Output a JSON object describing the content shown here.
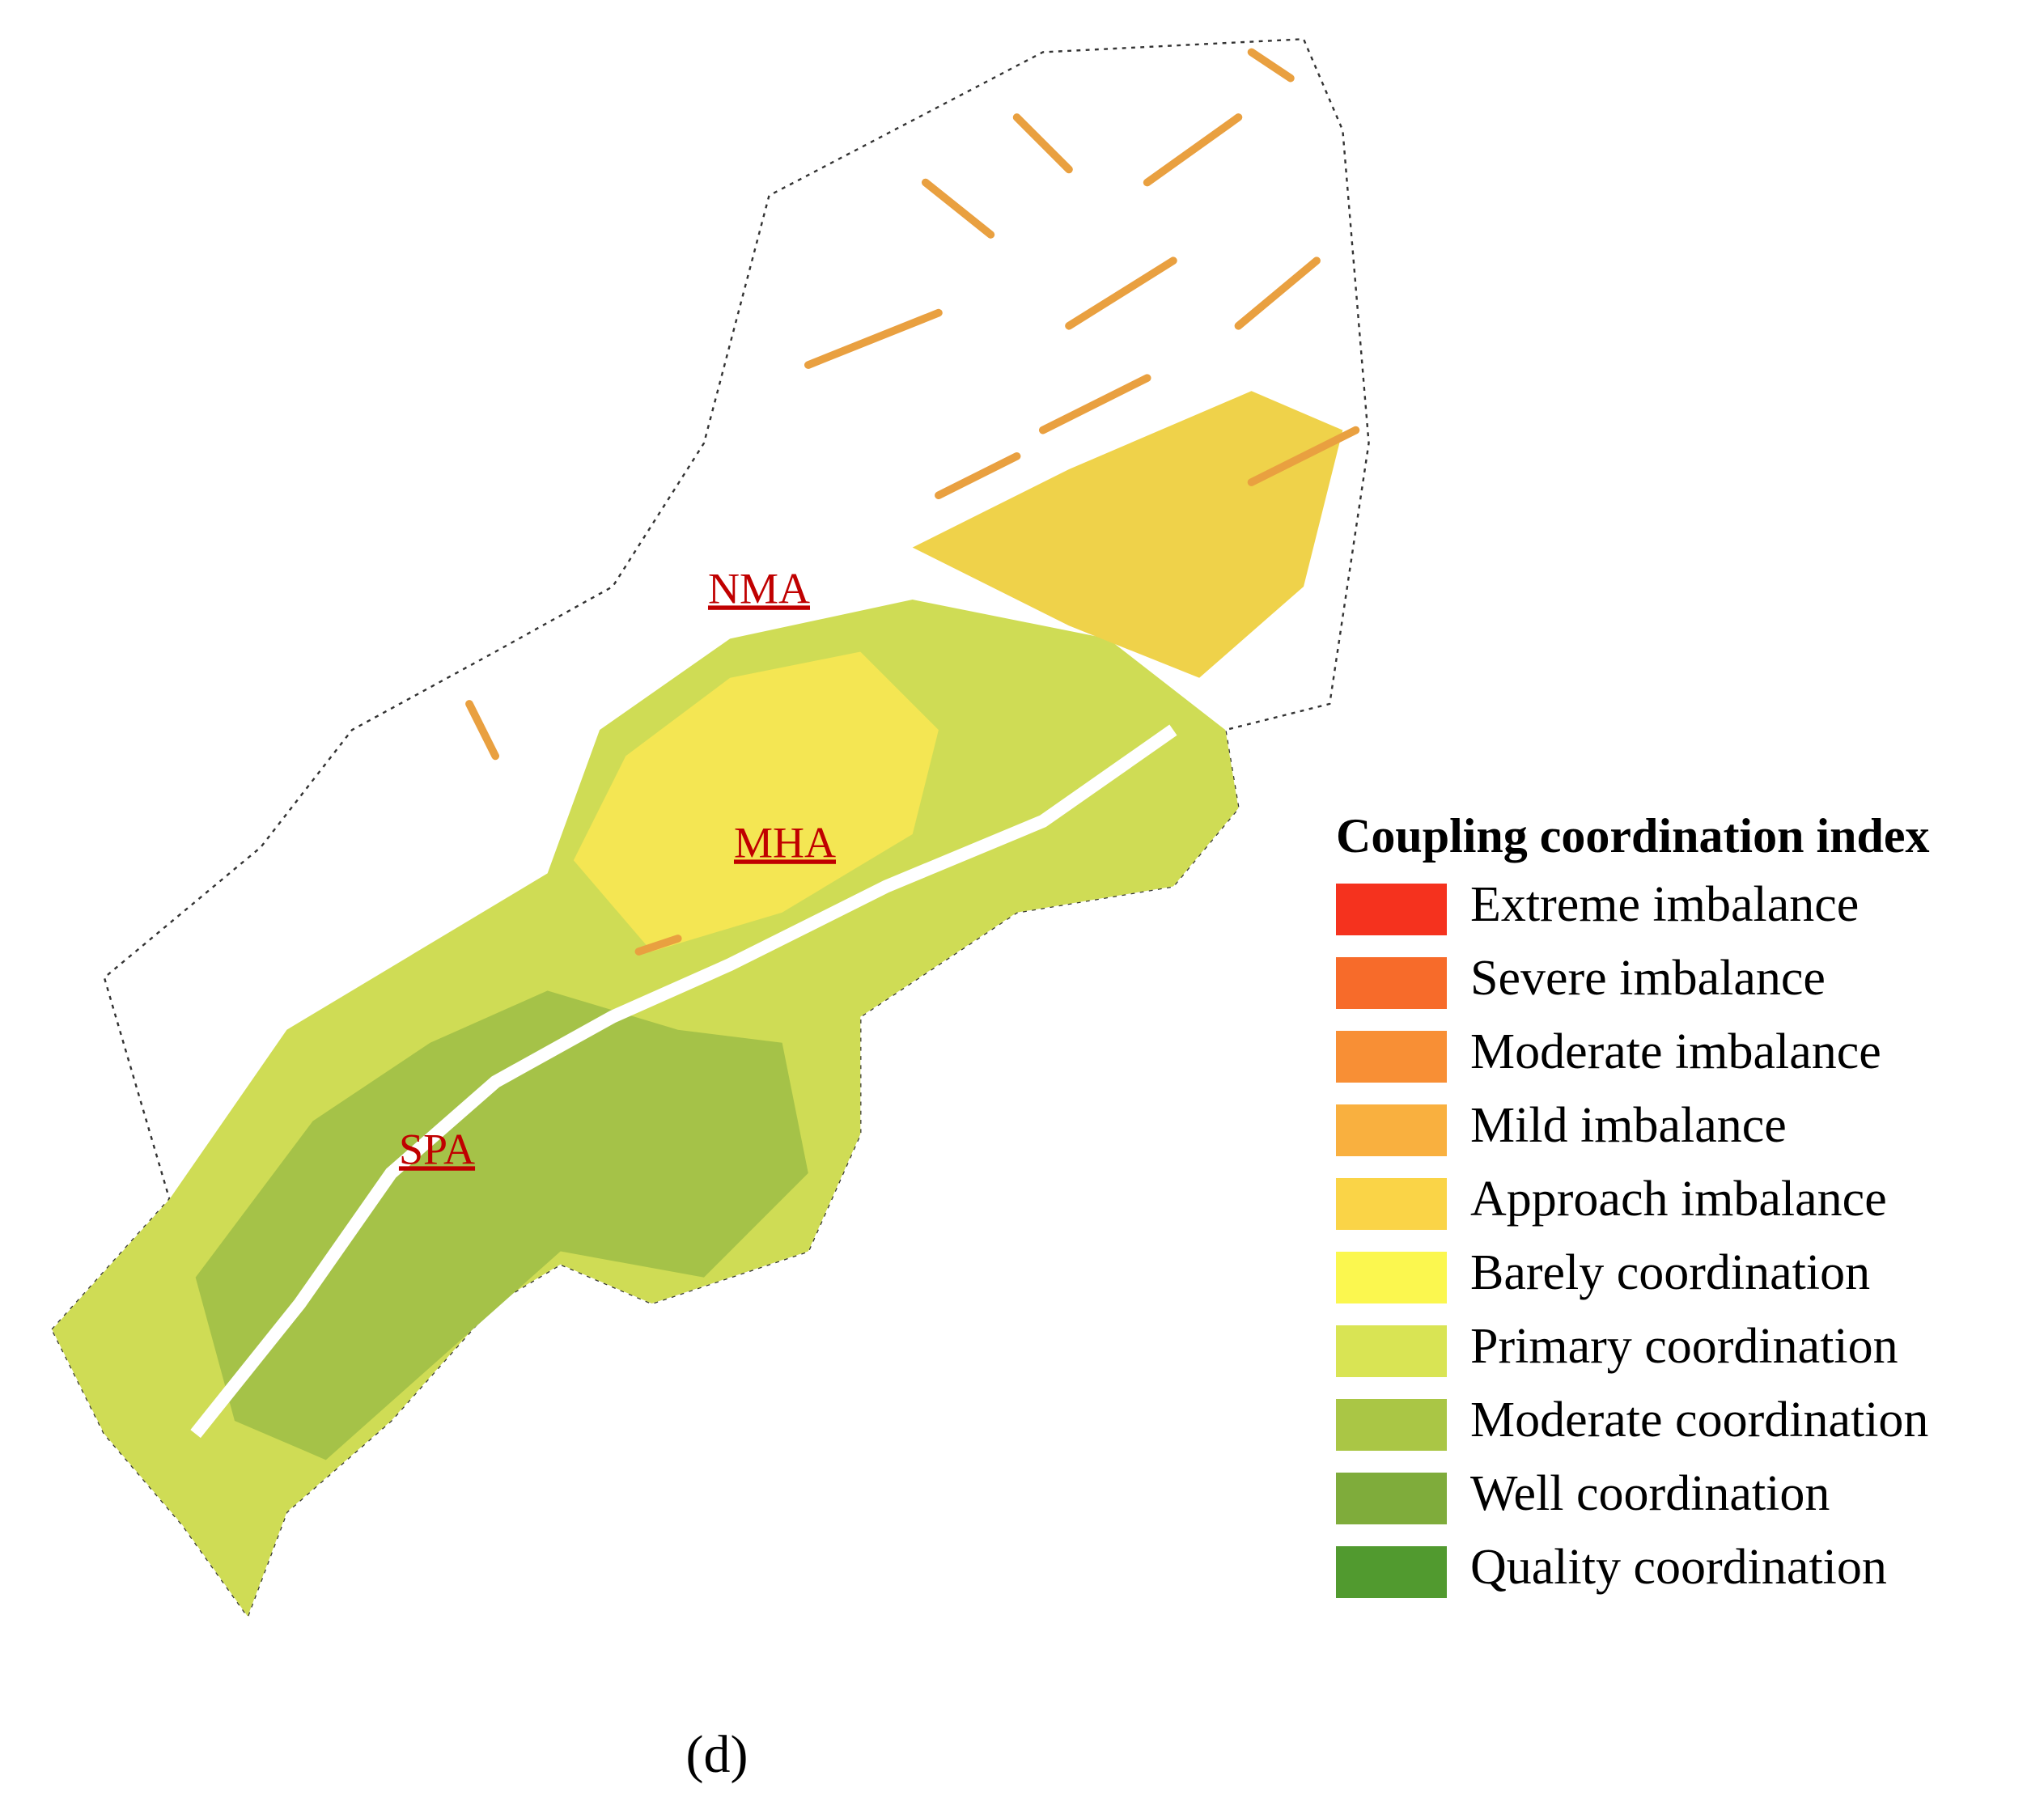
{
  "map": {
    "regions": [
      {
        "label": "NMA"
      },
      {
        "label": "MHA"
      },
      {
        "label": "SPA"
      }
    ],
    "legend": {
      "title": "Coupling coordination index",
      "items": [
        {
          "label": "Extreme imbalance",
          "color": "#f5321e"
        },
        {
          "label": "Severe imbalance",
          "color": "#f76b2a"
        },
        {
          "label": "Moderate imbalance",
          "color": "#f88f35"
        },
        {
          "label": "Mild imbalance",
          "color": "#f9b03f"
        },
        {
          "label": "Approach imbalance",
          "color": "#fad447"
        },
        {
          "label": "Barely coordination",
          "color": "#fbf74f"
        },
        {
          "label": "Primary coordination",
          "color": "#d9e454"
        },
        {
          "label": "Moderate coordination",
          "color": "#aac645"
        },
        {
          "label": "Well coordination",
          "color": "#7fac3b"
        },
        {
          "label": "Quality coordination",
          "color": "#519a2f"
        }
      ]
    }
  },
  "panel_label": "(d)"
}
